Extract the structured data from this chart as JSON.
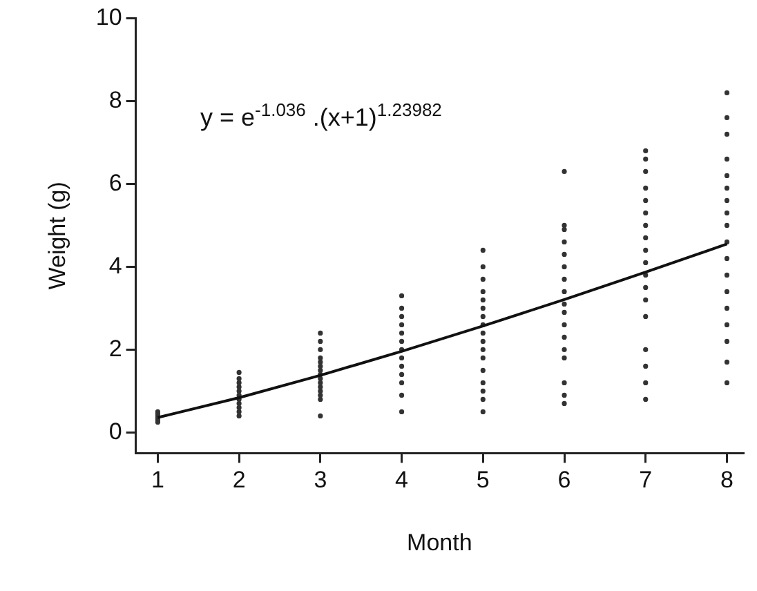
{
  "chart_data": {
    "type": "scatter",
    "xlabel": "Month",
    "ylabel": "Weight (g)",
    "xlim": [
      0.73,
      8.2
    ],
    "xticks": [
      1,
      2,
      3,
      4,
      5,
      6,
      7,
      8
    ],
    "ylim": [
      -0.5,
      10
    ],
    "yticks": [
      0,
      2,
      4,
      6,
      8,
      10
    ],
    "grid": false,
    "legend": false,
    "annotations": [
      "y = e$^{-1.036}$ .(x+1)$^{1.23982}$"
    ],
    "series": [
      {
        "marker": "circle",
        "color": "#333333",
        "x": [
          1,
          1,
          1,
          1,
          1,
          1,
          2,
          2,
          2,
          2,
          2,
          2,
          2,
          2,
          2,
          2,
          2,
          3,
          3,
          3,
          3,
          3,
          3,
          3,
          3,
          3,
          3,
          3,
          3,
          3,
          3,
          3,
          4,
          4,
          4,
          4,
          4,
          4,
          4,
          4,
          4,
          4,
          4,
          4,
          4,
          5,
          5,
          5,
          5,
          5,
          5,
          5,
          5,
          5,
          5,
          5,
          5,
          5,
          5,
          5,
          5,
          5,
          6,
          6,
          6,
          6,
          6,
          6,
          6,
          6,
          6,
          6,
          6,
          6,
          6,
          6,
          6,
          6,
          6,
          7,
          7,
          7,
          7,
          7,
          7,
          7,
          7,
          7,
          7,
          7,
          7,
          7,
          7,
          7,
          7,
          7,
          7,
          8,
          8,
          8,
          8,
          8,
          8,
          8,
          8,
          8,
          8,
          8,
          8,
          8,
          8,
          8,
          8,
          8,
          8
        ],
        "values": [
          0.25,
          0.3,
          0.35,
          0.4,
          0.45,
          0.5,
          0.4,
          0.5,
          0.6,
          0.7,
          0.8,
          0.9,
          1.0,
          1.1,
          1.2,
          1.3,
          1.45,
          0.4,
          0.8,
          0.9,
          1.0,
          1.1,
          1.2,
          1.3,
          1.4,
          1.5,
          1.6,
          1.7,
          1.8,
          2.0,
          2.2,
          2.4,
          0.5,
          0.9,
          1.2,
          1.4,
          1.6,
          1.8,
          2.0,
          2.2,
          2.4,
          2.6,
          2.8,
          3.0,
          3.3,
          0.5,
          0.8,
          1.0,
          1.2,
          1.5,
          1.8,
          2.0,
          2.2,
          2.4,
          2.6,
          2.8,
          3.0,
          3.2,
          3.4,
          3.7,
          4.0,
          4.4,
          0.7,
          0.9,
          1.2,
          1.8,
          2.0,
          2.3,
          2.6,
          2.9,
          3.1,
          3.4,
          3.7,
          4.0,
          4.3,
          4.6,
          4.9,
          5.0,
          6.3,
          0.8,
          1.2,
          1.6,
          2.0,
          2.8,
          3.2,
          3.5,
          3.8,
          4.1,
          4.4,
          4.7,
          5.0,
          5.3,
          5.6,
          5.9,
          6.3,
          6.6,
          6.8,
          1.2,
          1.7,
          2.2,
          2.6,
          3.0,
          3.4,
          3.8,
          4.2,
          4.6,
          5.0,
          5.3,
          5.6,
          5.9,
          6.2,
          6.6,
          7.2,
          7.6,
          8.2
        ]
      },
      {
        "type": "line",
        "marker": "none",
        "color": "#111111",
        "x": [
          1,
          2,
          3,
          4,
          5,
          6,
          7,
          8
        ],
        "values": [
          0.36,
          0.84,
          1.38,
          1.96,
          2.57,
          3.21,
          3.87,
          4.55
        ]
      }
    ]
  }
}
